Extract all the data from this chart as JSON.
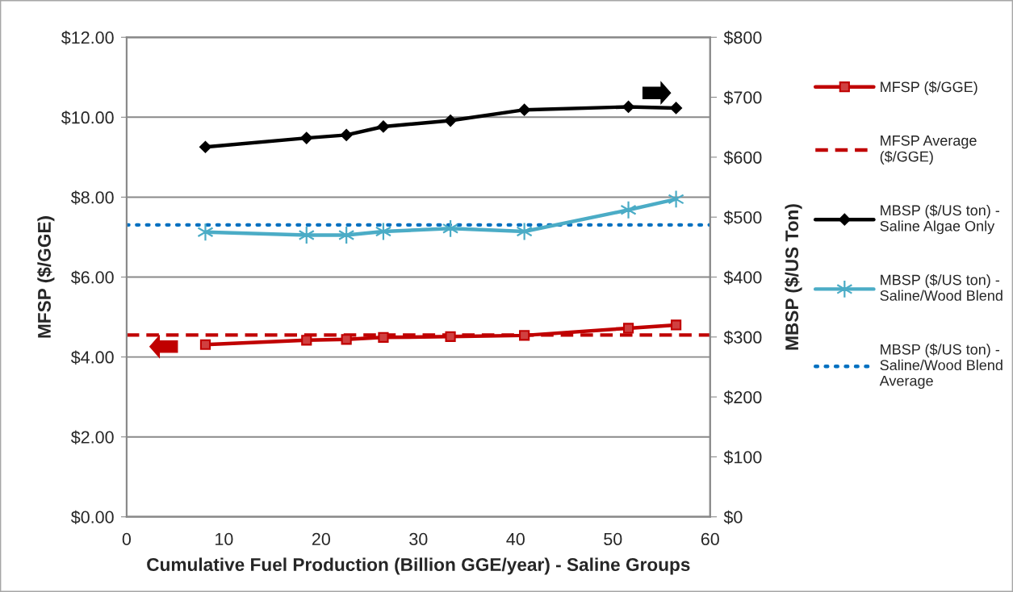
{
  "chart_data": {
    "type": "line",
    "xlabel": "Cumulative Fuel Production (Billion GGE/year) - Saline Groups",
    "ylabel": "MFSP ($/GGE)",
    "y2label": "MBSP ($/US Ton)",
    "x": [
      8.1,
      18.5,
      22.6,
      26.4,
      33.3,
      40.9,
      51.6,
      56.5
    ],
    "series": [
      {
        "name": "MFSP ($/GGE)",
        "color": "#c00000",
        "marker": "square",
        "values": [
          4.31,
          4.42,
          4.44,
          4.49,
          4.51,
          4.54,
          4.72,
          4.8
        ]
      },
      {
        "name": "MBSP ($/US ton) -\nSaline Algae Only",
        "color": "#000000",
        "marker": "diamond",
        "axis": "y2",
        "values": [
          617,
          632,
          637,
          651,
          661,
          679,
          684,
          682
        ]
      },
      {
        "name": "MBSP ($/US ton) -\nSaline/Wood Blend",
        "color": "#4bacc6",
        "marker": "cross",
        "axis": "y2",
        "values": [
          475,
          470,
          470,
          476,
          481,
          476,
          512,
          530
        ]
      }
    ],
    "ref_lines": [
      {
        "axis": "y",
        "value": 4.55,
        "label": "MFSP Average\n($/GGE)",
        "color": "#c00000",
        "line_style": "dashed"
      },
      {
        "axis": "y2",
        "value": 487,
        "label": "MBSP ($/US ton) -\nSaline/Wood Blend\nAverage",
        "color": "#0070c0",
        "line_style": "dotted"
      }
    ],
    "xlim": [
      0,
      60
    ],
    "xticks": [
      0,
      10,
      20,
      30,
      40,
      50,
      60
    ],
    "ylim": [
      0,
      12
    ],
    "yticks": [
      {
        "value": 0,
        "label": "$0.00"
      },
      {
        "value": 2,
        "label": "$2.00"
      },
      {
        "value": 4,
        "label": "$4.00"
      },
      {
        "value": 6,
        "label": "$6.00"
      },
      {
        "value": 8,
        "label": "$8.00"
      },
      {
        "value": 10,
        "label": "$10.00"
      },
      {
        "value": 12,
        "label": "$12.00"
      }
    ],
    "y2lim": [
      0,
      800
    ],
    "y2ticks": [
      {
        "value": 0,
        "label": "$0"
      },
      {
        "value": 100,
        "label": "$100"
      },
      {
        "value": 200,
        "label": "$200"
      },
      {
        "value": 300,
        "label": "$300"
      },
      {
        "value": 400,
        "label": "$400"
      },
      {
        "value": 500,
        "label": "$500"
      },
      {
        "value": 600,
        "label": "$600"
      },
      {
        "value": 700,
        "label": "$700"
      },
      {
        "value": 800,
        "label": "$800"
      }
    ],
    "grid": "y",
    "legend": "right",
    "line_style": "solid"
  }
}
